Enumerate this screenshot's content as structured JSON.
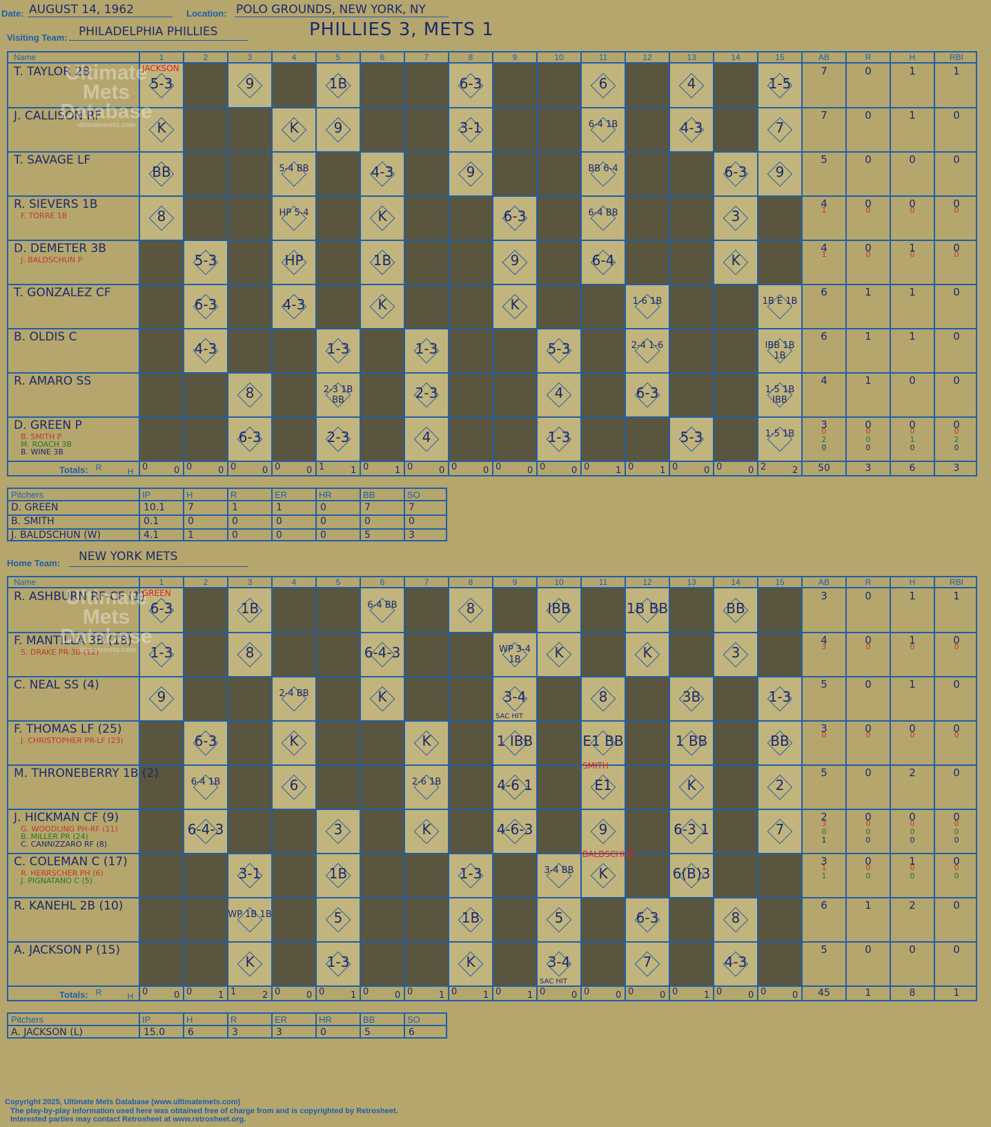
{
  "header": {
    "date_label": "Date:",
    "date": "AUGUST 14, 1962",
    "location_label": "Location:",
    "location": "POLO GROUNDS, NEW YORK, NY",
    "visiting_label": "Visiting Team:",
    "visiting_team": "PHILADELPHIA PHILLIES",
    "headline": "PHILLIES 3, METS 1",
    "home_label": "Home Team:",
    "home_team": "NEW YORK METS"
  },
  "watermark": {
    "line1": "Ultimate",
    "line2": "Mets",
    "line3": "Database",
    "url": "ultimatemets.com"
  },
  "columns": {
    "name": "Name",
    "innings": [
      "1",
      "2",
      "3",
      "4",
      "5",
      "6",
      "7",
      "8",
      "9",
      "10",
      "11",
      "12",
      "13",
      "14",
      "15"
    ],
    "stats": [
      "AB",
      "R",
      "H",
      "RBI"
    ]
  },
  "totals_label": "Totals:",
  "rh_label_r": "R",
  "rh_label_h": "H",
  "visitors": {
    "pitcher_note": "JACKSON",
    "players": [
      {
        "name": "T. TAYLOR 2B",
        "subs": [],
        "stats": [
          [
            "7",
            "0",
            "1",
            "1"
          ]
        ]
      },
      {
        "name": "J. CALLISON RF",
        "subs": [],
        "stats": [
          [
            "7",
            "0",
            "1",
            "0"
          ]
        ]
      },
      {
        "name": "T. SAVAGE LF",
        "subs": [],
        "stats": [
          [
            "5",
            "0",
            "0",
            "0"
          ]
        ]
      },
      {
        "name": "R. SIEVERS 1B",
        "subs": [
          {
            "name": "F. TORRE 1B",
            "color": "#c0392b"
          }
        ],
        "stats": [
          [
            "4",
            "0",
            "0",
            "0"
          ],
          [
            "1",
            "0",
            "0",
            "0"
          ]
        ]
      },
      {
        "name": "D. DEMETER 3B",
        "subs": [
          {
            "name": "J. BALDSCHUN P",
            "color": "#c0392b"
          }
        ],
        "stats": [
          [
            "4",
            "0",
            "1",
            "0"
          ],
          [
            "1",
            "0",
            "0",
            "0"
          ]
        ]
      },
      {
        "name": "T. GONZALEZ CF",
        "subs": [],
        "stats": [
          [
            "6",
            "1",
            "1",
            "0"
          ]
        ]
      },
      {
        "name": "B. OLDIS C",
        "subs": [],
        "stats": [
          [
            "6",
            "1",
            "1",
            "0"
          ]
        ]
      },
      {
        "name": "R. AMARO SS",
        "subs": [],
        "stats": [
          [
            "4",
            "1",
            "0",
            "0"
          ]
        ]
      },
      {
        "name": "D. GREEN P",
        "subs": [
          {
            "name": "B. SMITH P",
            "color": "#c0392b"
          },
          {
            "name": "M. ROACH 3B",
            "color": "#1e7a2e"
          },
          {
            "name": "B. WINE 3B",
            "color": "#1a2a6c"
          }
        ],
        "stats": [
          [
            "3",
            "0",
            "0",
            "0"
          ],
          [
            "0",
            "0",
            "0",
            "0"
          ],
          [
            "2",
            "0",
            "1",
            "2"
          ],
          [
            "0",
            "0",
            "0",
            "0"
          ]
        ]
      }
    ],
    "cells": [
      [
        "5-3",
        "",
        "9",
        "",
        "1B",
        "",
        "",
        "6-3",
        "",
        "",
        "6",
        "",
        "4",
        "",
        "1-5"
      ],
      [
        "K",
        "",
        "",
        "K",
        "9",
        "",
        "",
        "3-1",
        "",
        "",
        "6-4 1B",
        "",
        "4-3",
        "",
        "7"
      ],
      [
        "BB",
        "",
        "",
        "5-4 BB",
        "",
        "4-3",
        "",
        "9",
        "",
        "",
        "BB 6-4",
        "",
        "",
        "6-3",
        "9"
      ],
      [
        "8",
        "",
        "",
        "HP 5-4",
        "",
        "K",
        "",
        "",
        "6-3",
        "",
        "6-4 BB",
        "",
        "",
        "3",
        ""
      ],
      [
        "",
        "5-3",
        "",
        "HP",
        "",
        "1B",
        "",
        "",
        "9",
        "",
        "6-4",
        "",
        "",
        "K",
        ""
      ],
      [
        "",
        "6-3",
        "",
        "4-3",
        "",
        "K",
        "",
        "",
        "K",
        "",
        "",
        "1-6 1B",
        "",
        "",
        "1B E 1B"
      ],
      [
        "",
        "4-3",
        "",
        "",
        "1-3",
        "",
        "1-3",
        "",
        "",
        "5-3",
        "",
        "2-4 1-6",
        "",
        "",
        "IBB 1B 1B"
      ],
      [
        "",
        "",
        "8",
        "",
        "2-3 1B BB",
        "",
        "2-3",
        "",
        "",
        "4",
        "",
        "6-3",
        "",
        "",
        "1-5 1B IBB"
      ],
      [
        "",
        "",
        "6-3",
        "",
        "2-3",
        "",
        "4",
        "",
        "",
        "1-3",
        "",
        "",
        "5-3",
        "",
        "1-5 1B"
      ]
    ],
    "dark": [
      [
        0,
        1,
        0,
        1,
        0,
        1,
        1,
        0,
        1,
        1,
        0,
        1,
        0,
        1,
        0
      ],
      [
        0,
        1,
        1,
        0,
        0,
        1,
        1,
        0,
        1,
        1,
        0,
        1,
        0,
        1,
        0
      ],
      [
        0,
        1,
        1,
        0,
        1,
        0,
        1,
        0,
        1,
        1,
        0,
        1,
        1,
        0,
        0
      ],
      [
        0,
        1,
        1,
        0,
        1,
        0,
        1,
        1,
        0,
        1,
        0,
        1,
        1,
        0,
        1
      ],
      [
        1,
        0,
        1,
        0,
        1,
        0,
        1,
        1,
        0,
        1,
        0,
        1,
        1,
        0,
        1
      ],
      [
        1,
        0,
        1,
        0,
        1,
        0,
        1,
        1,
        0,
        1,
        1,
        0,
        1,
        1,
        0
      ],
      [
        1,
        0,
        1,
        1,
        0,
        1,
        0,
        1,
        1,
        0,
        1,
        0,
        1,
        1,
        0
      ],
      [
        1,
        1,
        0,
        1,
        0,
        1,
        0,
        1,
        1,
        0,
        1,
        0,
        1,
        1,
        0
      ],
      [
        1,
        1,
        0,
        1,
        0,
        1,
        0,
        1,
        1,
        0,
        1,
        1,
        0,
        1,
        0
      ]
    ],
    "totals": [
      [
        "0",
        "0"
      ],
      [
        "0",
        "0"
      ],
      [
        "0",
        "0"
      ],
      [
        "0",
        "0"
      ],
      [
        "1",
        "1"
      ],
      [
        "0",
        "1"
      ],
      [
        "0",
        "0"
      ],
      [
        "0",
        "0"
      ],
      [
        "0",
        "0"
      ],
      [
        "0",
        "0"
      ],
      [
        "0",
        "1"
      ],
      [
        "0",
        "1"
      ],
      [
        "0",
        "0"
      ],
      [
        "0",
        "0"
      ],
      [
        "2",
        "2"
      ]
    ],
    "stat_totals": [
      "50",
      "3",
      "6",
      "3"
    ],
    "pitchers_label": "Pitchers",
    "pitcher_cols": [
      "IP",
      "H",
      "R",
      "ER",
      "HR",
      "BB",
      "SO"
    ],
    "pitchers": [
      [
        "D. GREEN",
        "10.1",
        "7",
        "1",
        "1",
        "0",
        "7",
        "7"
      ],
      [
        "B. SMITH",
        "0.1",
        "0",
        "0",
        "0",
        "0",
        "0",
        "0"
      ],
      [
        "J. BALDSCHUN (W)",
        "4.1",
        "1",
        "0",
        "0",
        "0",
        "5",
        "3"
      ]
    ]
  },
  "home": {
    "pitcher_note": "GREEN",
    "notes": [
      "SMITH",
      "BALDSCHUN"
    ],
    "players": [
      {
        "name": "R. ASHBURN RF-CF (1)",
        "subs": [],
        "stats": [
          [
            "3",
            "0",
            "1",
            "1"
          ]
        ]
      },
      {
        "name": "F. MANTILLA 3B (18)",
        "subs": [
          {
            "name": "S. DRAKE PR-3B (12)",
            "color": "#c0392b"
          }
        ],
        "stats": [
          [
            "4",
            "0",
            "1",
            "0"
          ],
          [
            "3",
            "0",
            "0",
            "0"
          ]
        ]
      },
      {
        "name": "C. NEAL SS (4)",
        "subs": [],
        "stats": [
          [
            "5",
            "0",
            "1",
            "0"
          ]
        ]
      },
      {
        "name": "F. THOMAS LF (25)",
        "subs": [
          {
            "name": "J. CHRISTOPHER PR-LF (23)",
            "color": "#c0392b"
          }
        ],
        "stats": [
          [
            "3",
            "0",
            "0",
            "0"
          ],
          [
            "0",
            "0",
            "0",
            "0"
          ]
        ]
      },
      {
        "name": "M. THRONEBERRY 1B (2)",
        "subs": [],
        "stats": [
          [
            "5",
            "0",
            "2",
            "0"
          ]
        ]
      },
      {
        "name": "J. HICKMAN CF (9)",
        "subs": [
          {
            "name": "G. WOODLING PH-RF (11)",
            "color": "#c0392b"
          },
          {
            "name": "B. MILLER PR (24)",
            "color": "#1e7a2e"
          },
          {
            "name": "C. CANNIZZARO RF (8)",
            "color": "#1a2a6c"
          }
        ],
        "stats": [
          [
            "2",
            "0",
            "0",
            "0"
          ],
          [
            "3",
            "0",
            "0",
            "0"
          ],
          [
            "0",
            "0",
            "0",
            "0"
          ],
          [
            "1",
            "0",
            "0",
            "0"
          ]
        ]
      },
      {
        "name": "C. COLEMAN C (17)",
        "subs": [
          {
            "name": "R. HERRSCHER PH (6)",
            "color": "#c0392b"
          },
          {
            "name": "J. PIGNATANO C (5)",
            "color": "#1e7a2e"
          }
        ],
        "stats": [
          [
            "3",
            "0",
            "1",
            "0"
          ],
          [
            "1",
            "0",
            "0",
            "0"
          ],
          [
            "1",
            "0",
            "0",
            "0"
          ]
        ]
      },
      {
        "name": "R. KANEHL 2B (10)",
        "subs": [],
        "stats": [
          [
            "6",
            "1",
            "2",
            "0"
          ]
        ]
      },
      {
        "name": "A. JACKSON P (15)",
        "subs": [],
        "stats": [
          [
            "5",
            "0",
            "0",
            "0"
          ]
        ]
      }
    ],
    "cells": [
      [
        "6-3",
        "",
        "1B",
        "",
        "",
        "6-4 BB",
        "",
        "8",
        "",
        "IBB",
        "",
        "1B BB",
        "",
        "BB",
        ""
      ],
      [
        "1-3",
        "",
        "8",
        "",
        "",
        "6-4-3",
        "",
        "",
        "WP 3-4 1B",
        "K",
        "",
        "K",
        "",
        "3",
        ""
      ],
      [
        "9",
        "",
        "",
        "2-4 BB",
        "",
        "K",
        "",
        "",
        "3-4",
        "",
        "8",
        "",
        "3B",
        "",
        "1-3"
      ],
      [
        "",
        "6-3",
        "",
        "K",
        "",
        "",
        "K",
        "",
        "1 IBB",
        "",
        "E1 BB",
        "",
        "1 BB",
        "",
        "BB"
      ],
      [
        "",
        "6-4 1B",
        "",
        "6",
        "",
        "",
        "2-6 1B",
        "",
        "4-6 1",
        "",
        "E1",
        "",
        "K",
        "",
        "2"
      ],
      [
        "",
        "6-4-3",
        "",
        "",
        "3",
        "",
        "K",
        "",
        "4-6-3",
        "",
        "9",
        "",
        "6-3 1",
        "",
        "7"
      ],
      [
        "",
        "",
        "3-1",
        "",
        "1B",
        "",
        "",
        "1-3",
        "",
        "3-4 BB",
        "K",
        "",
        "6(B)3",
        "",
        ""
      ],
      [
        "",
        "",
        "WP 1B 1B",
        "",
        "5",
        "",
        "",
        "1B",
        "",
        "5",
        "",
        "6-3",
        "",
        "8",
        ""
      ],
      [
        "",
        "",
        "K",
        "",
        "1-3",
        "",
        "",
        "K",
        "",
        "3-4",
        "",
        "7",
        "",
        "4-3",
        ""
      ]
    ],
    "subtext": {
      "2-8": "SAC HIT",
      "8-9": "SAC HIT"
    },
    "dark": [
      [
        0,
        1,
        0,
        1,
        1,
        0,
        1,
        0,
        1,
        0,
        1,
        0,
        1,
        0,
        1
      ],
      [
        0,
        1,
        0,
        1,
        1,
        0,
        1,
        1,
        0,
        0,
        1,
        0,
        1,
        0,
        1
      ],
      [
        0,
        1,
        1,
        0,
        1,
        0,
        1,
        1,
        0,
        1,
        0,
        1,
        0,
        1,
        0
      ],
      [
        1,
        0,
        1,
        0,
        1,
        1,
        0,
        1,
        0,
        1,
        0,
        1,
        0,
        1,
        0
      ],
      [
        1,
        0,
        1,
        0,
        1,
        1,
        0,
        1,
        0,
        1,
        0,
        1,
        0,
        1,
        0
      ],
      [
        1,
        0,
        1,
        1,
        0,
        1,
        0,
        1,
        0,
        1,
        0,
        1,
        0,
        1,
        0
      ],
      [
        1,
        1,
        0,
        1,
        0,
        1,
        1,
        0,
        1,
        0,
        0,
        1,
        0,
        1,
        1
      ],
      [
        1,
        1,
        0,
        1,
        0,
        1,
        1,
        0,
        1,
        0,
        1,
        0,
        1,
        0,
        1
      ],
      [
        1,
        1,
        0,
        1,
        0,
        1,
        1,
        0,
        1,
        0,
        1,
        0,
        1,
        0,
        1
      ]
    ],
    "totals": [
      [
        "0",
        "0"
      ],
      [
        "0",
        "1"
      ],
      [
        "1",
        "2"
      ],
      [
        "0",
        "0"
      ],
      [
        "0",
        "1"
      ],
      [
        "0",
        "0"
      ],
      [
        "0",
        "1"
      ],
      [
        "0",
        "1"
      ],
      [
        "0",
        "1"
      ],
      [
        "0",
        "0"
      ],
      [
        "0",
        "0"
      ],
      [
        "0",
        "0"
      ],
      [
        "0",
        "1"
      ],
      [
        "0",
        "0"
      ],
      [
        "0",
        "0"
      ]
    ],
    "stat_totals": [
      "45",
      "1",
      "8",
      "1"
    ],
    "pitchers_label": "Pitchers",
    "pitcher_cols": [
      "IP",
      "H",
      "R",
      "ER",
      "HR",
      "BB",
      "SO"
    ],
    "pitchers": [
      [
        "A. JACKSON (L)",
        "15.0",
        "6",
        "3",
        "3",
        "0",
        "5",
        "6"
      ]
    ]
  },
  "footer": {
    "copyright": "Copyright 2025, Ultimate Mets Database (www.ultimatemets.com)",
    "line2": "The play-by-play information used here was obtained free of charge from and is copyrighted by Retrosheet.",
    "line3": "Interested parties may contact Retrosheet at www.retrosheet.org."
  },
  "colors": {
    "background": "#b5a66e",
    "line": "#1f5fa8",
    "ink": "#1a2a6c",
    "dark_cell": "#59553f",
    "red": "#e02020"
  }
}
